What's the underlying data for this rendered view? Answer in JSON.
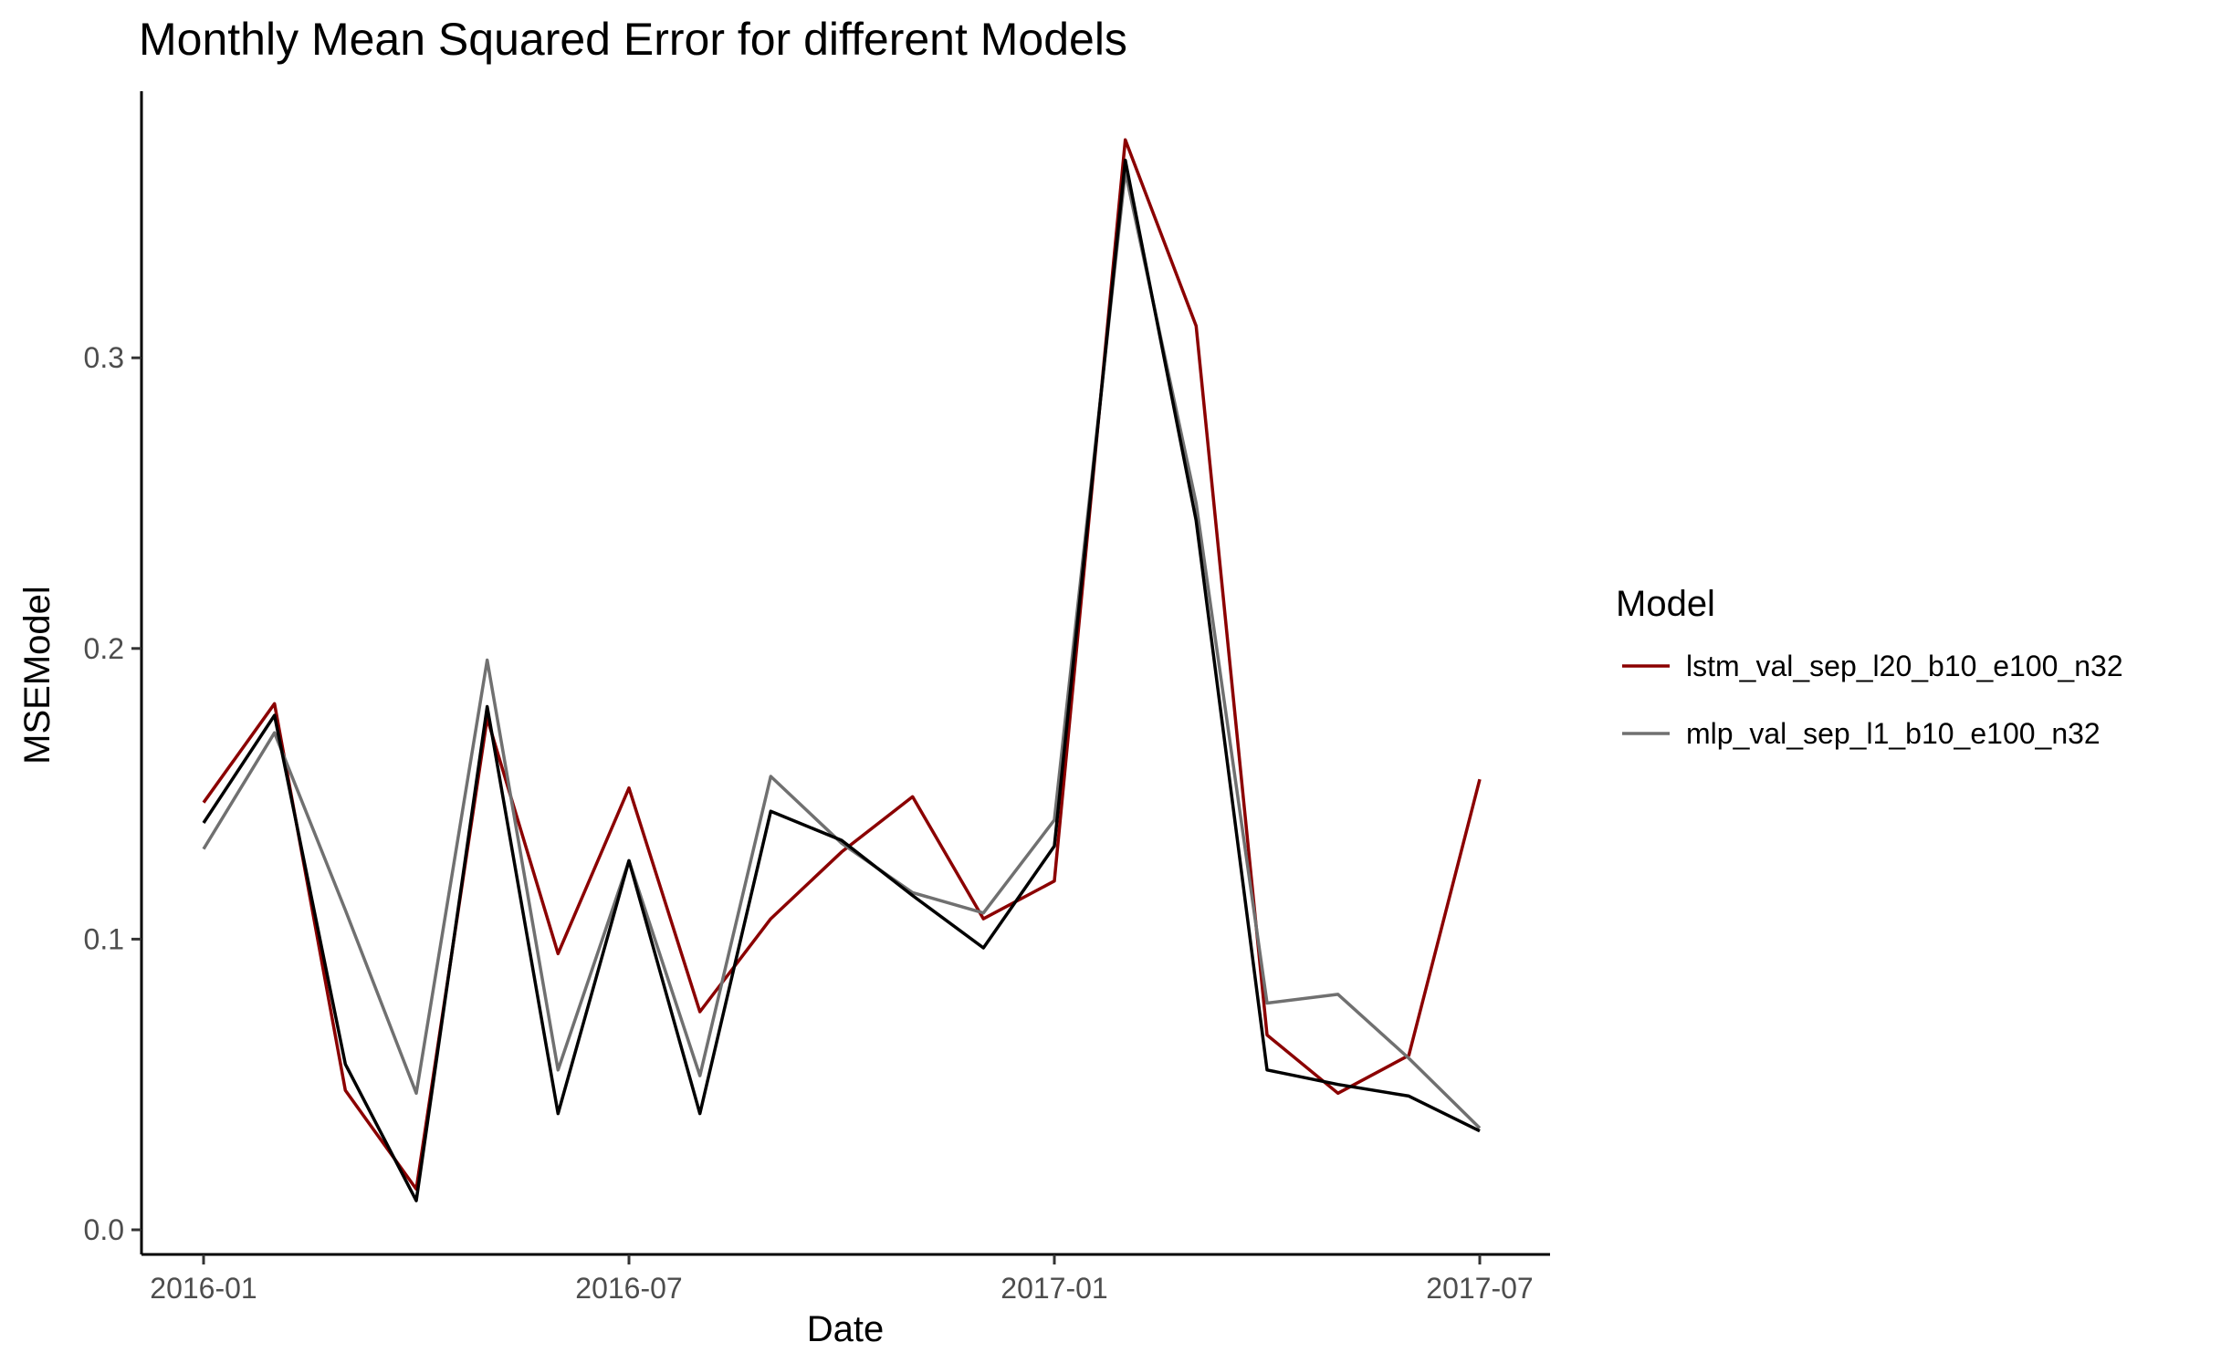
{
  "chart_data": {
    "type": "line",
    "title": "Monthly Mean Squared Error for different Models",
    "xlabel": "Date",
    "ylabel": "MSEModel",
    "x": [
      "2016-01",
      "2016-02",
      "2016-03",
      "2016-04",
      "2016-05",
      "2016-06",
      "2016-07",
      "2016-08",
      "2016-09",
      "2016-10",
      "2016-11",
      "2016-12",
      "2017-01",
      "2017-02",
      "2017-03",
      "2017-04",
      "2017-05",
      "2017-06",
      "2017-07"
    ],
    "x_ticks": [
      "2016-01",
      "2016-07",
      "2017-01",
      "2017-07"
    ],
    "y_ticks": [
      "0.0",
      "0.1",
      "0.2",
      "0.3"
    ],
    "ylim": [
      0,
      0.38
    ],
    "grid": false,
    "legend": {
      "title": "Model",
      "position": "right"
    },
    "series": [
      {
        "name": "lstm_val_sep_l20_b10_e100_n32",
        "color": "#8b0000",
        "values": [
          0.147,
          0.181,
          0.048,
          0.014,
          0.176,
          0.095,
          0.152,
          0.075,
          0.107,
          0.13,
          0.149,
          0.107,
          0.12,
          0.375,
          0.311,
          0.067,
          0.047,
          0.06,
          0.155
        ]
      },
      {
        "name": "mlp_val_sep_l1_b10_e100_n32",
        "color": "#707070",
        "values": [
          0.131,
          0.171,
          0.11,
          0.047,
          0.196,
          0.055,
          0.127,
          0.053,
          0.156,
          0.133,
          0.116,
          0.109,
          0.141,
          0.364,
          0.25,
          0.078,
          0.081,
          0.059,
          0.035
        ]
      },
      {
        "color": "#000000",
        "values": [
          0.14,
          0.177,
          0.057,
          0.01,
          0.18,
          0.04,
          0.127,
          0.04,
          0.144,
          0.134,
          0.115,
          0.097,
          0.132,
          0.368,
          0.244,
          0.055,
          0.05,
          0.046,
          0.034
        ]
      }
    ]
  }
}
